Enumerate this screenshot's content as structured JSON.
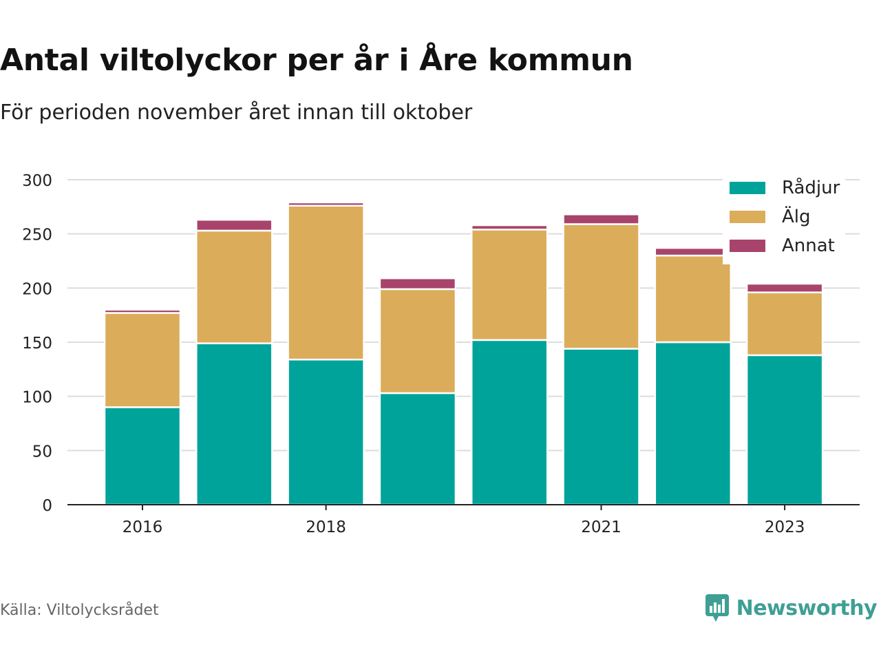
{
  "title": "Antal viltolyckor per år i Åre kommun",
  "subtitle": "För perioden november året innan till oktober",
  "source": "Källa: Viltolycksrådet",
  "brand": "Newsworthy",
  "colors": {
    "radjur": "#00a39a",
    "alg": "#dbad5b",
    "annat": "#a8446b",
    "grid": "#dddddd",
    "axis": "#222222",
    "brand": "#3f9f94"
  },
  "chart_data": {
    "type": "bar",
    "stacked": true,
    "categories": [
      "2016",
      "2017",
      "2018",
      "2019",
      "2020",
      "2021",
      "2022",
      "2023"
    ],
    "x_tick_labels": [
      "2016",
      "",
      "2018",
      "",
      "",
      "2021",
      "",
      "2023"
    ],
    "series": [
      {
        "name": "Rådjur",
        "color": "#00a39a",
        "values": [
          90,
          149,
          134,
          103,
          152,
          144,
          150,
          138
        ]
      },
      {
        "name": "Älg",
        "color": "#dbad5b",
        "values": [
          87,
          104,
          142,
          96,
          102,
          115,
          80,
          58
        ]
      },
      {
        "name": "Annat",
        "color": "#a8446b",
        "values": [
          3,
          10,
          3,
          10,
          4,
          9,
          7,
          8
        ]
      }
    ],
    "ylim": [
      0,
      300
    ],
    "yticks": [
      0,
      50,
      100,
      150,
      200,
      250,
      300
    ],
    "grid": true,
    "legend_position": "top-right"
  }
}
